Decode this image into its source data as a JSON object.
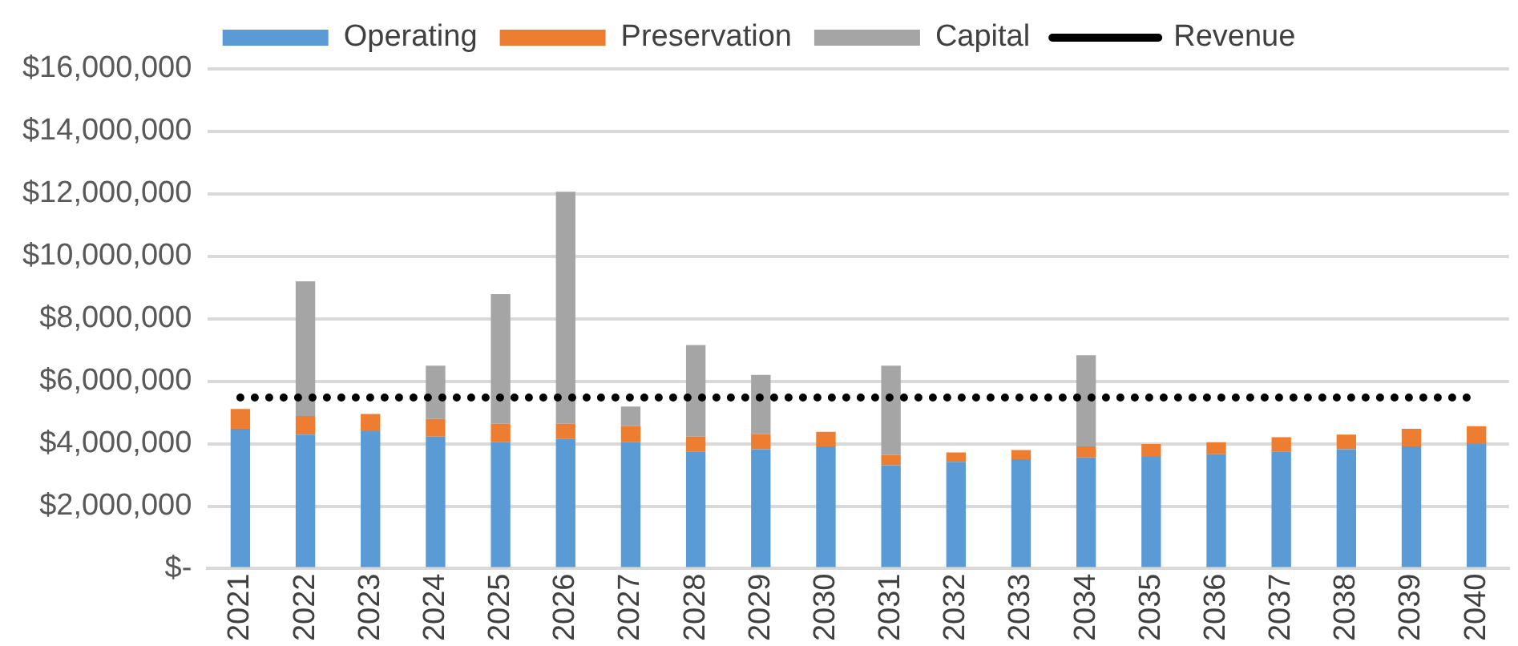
{
  "chart_data": {
    "type": "bar",
    "stacked": true,
    "categories": [
      "2021",
      "2022",
      "2023",
      "2024",
      "2025",
      "2026",
      "2027",
      "2028",
      "2029",
      "2030",
      "2031",
      "2032",
      "2033",
      "2034",
      "2035",
      "2036",
      "2037",
      "2038",
      "2039",
      "2040"
    ],
    "series": [
      {
        "name": "Operating",
        "color": "#5b9bd5",
        "values": [
          4480000,
          4290000,
          4400000,
          4230000,
          4050000,
          4150000,
          4050000,
          3740000,
          3820000,
          3910000,
          3310000,
          3420000,
          3500000,
          3560000,
          3580000,
          3660000,
          3740000,
          3820000,
          3910000,
          3990000
        ]
      },
      {
        "name": "Preservation",
        "color": "#ed7d31",
        "values": [
          630000,
          600000,
          550000,
          560000,
          590000,
          490000,
          510000,
          490000,
          490000,
          470000,
          330000,
          300000,
          300000,
          350000,
          410000,
          390000,
          470000,
          470000,
          570000,
          570000
        ]
      },
      {
        "name": "Capital",
        "color": "#a5a5a5",
        "values": [
          0,
          4310000,
          0,
          1710000,
          4150000,
          7430000,
          630000,
          2930000,
          1890000,
          0,
          2860000,
          0,
          0,
          2920000,
          0,
          0,
          0,
          0,
          0,
          0
        ]
      },
      {
        "name": "Revenue",
        "type": "line",
        "color": "#000000",
        "marker": "none",
        "line_style": "dotted",
        "values": [
          5480000,
          5480000,
          5480000,
          5480000,
          5480000,
          5480000,
          5480000,
          5480000,
          5480000,
          5480000,
          5480000,
          5480000,
          5480000,
          5480000,
          5480000,
          5480000,
          5480000,
          5480000,
          5480000,
          5480000
        ]
      }
    ],
    "ylim": [
      0,
      16000000
    ],
    "yticks": [
      {
        "value": 0,
        "label": "$-"
      },
      {
        "value": 2000000,
        "label": "$2,000,000"
      },
      {
        "value": 4000000,
        "label": "$4,000,000"
      },
      {
        "value": 6000000,
        "label": "$6,000,000"
      },
      {
        "value": 8000000,
        "label": "$8,000,000"
      },
      {
        "value": 10000000,
        "label": "$10,000,000"
      },
      {
        "value": 12000000,
        "label": "$12,000,000"
      },
      {
        "value": 14000000,
        "label": "$14,000,000"
      },
      {
        "value": 16000000,
        "label": "$16,000,000"
      }
    ],
    "grid": "y",
    "legend": "top"
  }
}
